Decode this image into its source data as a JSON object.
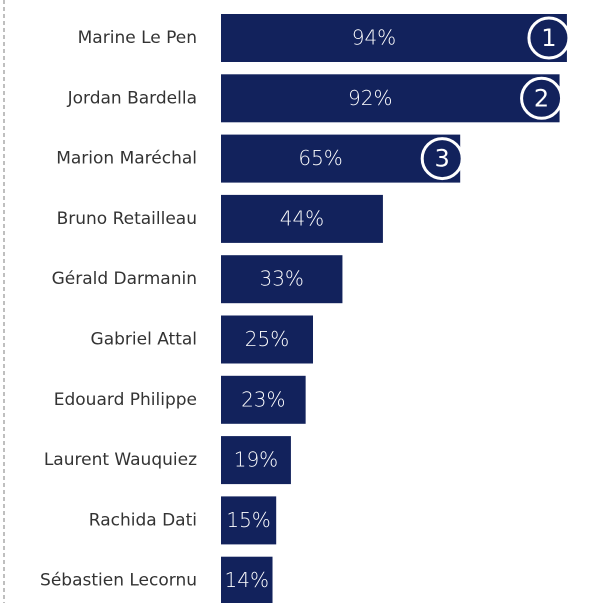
{
  "chart_data": {
    "type": "bar",
    "orientation": "horizontal",
    "categories": [
      "Marine Le Pen",
      "Jordan Bardella",
      "Marion Maréchal",
      "Bruno Retailleau",
      "Gérald Darmanin",
      "Gabriel Attal",
      "Edouard Philippe",
      "Laurent Wauquiez",
      "Rachida Dati",
      "Sébastien Lecornu"
    ],
    "values": [
      94,
      92,
      65,
      44,
      33,
      25,
      23,
      19,
      15,
      14
    ],
    "value_labels": [
      "94%",
      "92%",
      "65%",
      "44%",
      "33%",
      "25%",
      "23%",
      "19%",
      "15%",
      "14%"
    ],
    "ranks": [
      1,
      2,
      3
    ],
    "color": "#12225c",
    "xlim": [
      0,
      100
    ]
  }
}
